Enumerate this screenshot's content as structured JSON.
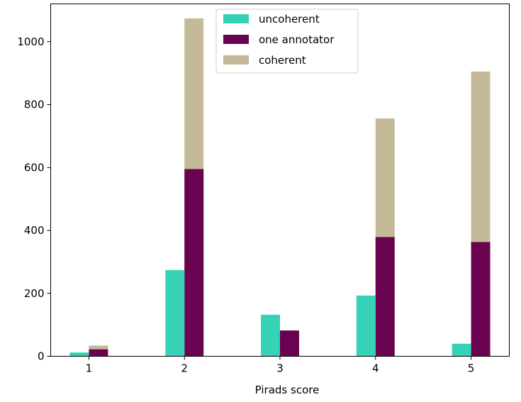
{
  "chart_data": {
    "type": "bar",
    "xlabel": "Pirads score",
    "ylabel": "",
    "ylim": [
      0,
      1120
    ],
    "xlim": [
      0.6,
      5.4
    ],
    "x_ticks": [
      "1",
      "2",
      "3",
      "4",
      "5"
    ],
    "y_ticks": [
      "0",
      "200",
      "400",
      "600",
      "800",
      "1000"
    ],
    "legend_position": "top-center",
    "grid": false,
    "series": [
      {
        "name": "uncoherent",
        "color": "#36d2b5",
        "values": [
          12,
          274,
          132,
          193,
          40
        ]
      },
      {
        "name": "one annotator",
        "color": "#69034f",
        "values": [
          22,
          595,
          82,
          379,
          363
        ]
      },
      {
        "name": "coherent",
        "color": "#c4ba98",
        "values": [
          34,
          1074,
          0,
          756,
          905
        ]
      }
    ],
    "note": "one annotator and coherent are drawn in the same right-hand slot; coherent values are the bar top (stacked appearance)"
  }
}
